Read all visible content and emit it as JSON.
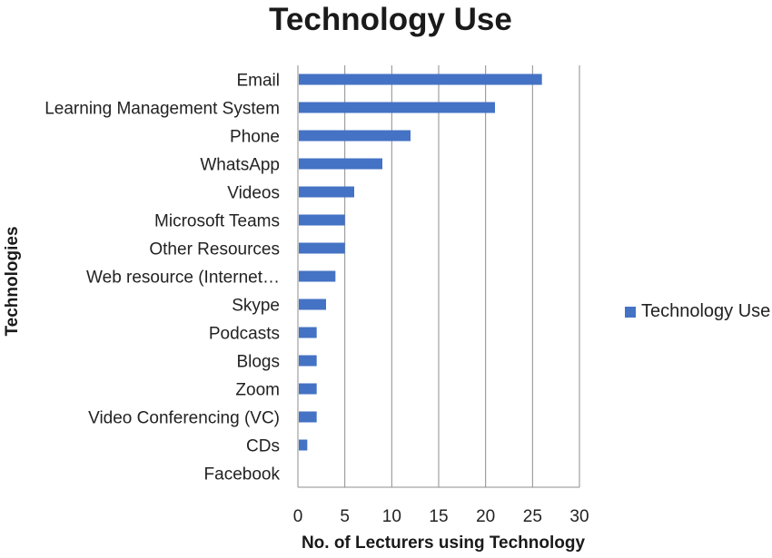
{
  "chart_data": {
    "type": "bar",
    "orientation": "horizontal",
    "title": "Technology Use",
    "xlabel": "No. of Lecturers using Technology",
    "ylabel": "Technologies",
    "categories": [
      "Email",
      "Learning Management System",
      "Phone",
      "WhatsApp",
      "Videos",
      "Microsoft Teams",
      "Other Resources",
      "Web resource (Internet…",
      "Skype",
      "Podcasts",
      "Blogs",
      "Zoom",
      "Video Conferencing (VC)",
      "CDs",
      "Facebook"
    ],
    "series": [
      {
        "name": "Technology Use",
        "values": [
          26,
          21,
          12,
          9,
          6,
          5,
          5,
          4,
          3,
          2,
          2,
          2,
          2,
          1,
          0
        ],
        "color": "#4472C4"
      }
    ],
    "xlim": [
      0,
      30
    ],
    "xticks": [
      0,
      5,
      10,
      15,
      20,
      25,
      30
    ],
    "grid": "vertical",
    "legend": "right"
  }
}
